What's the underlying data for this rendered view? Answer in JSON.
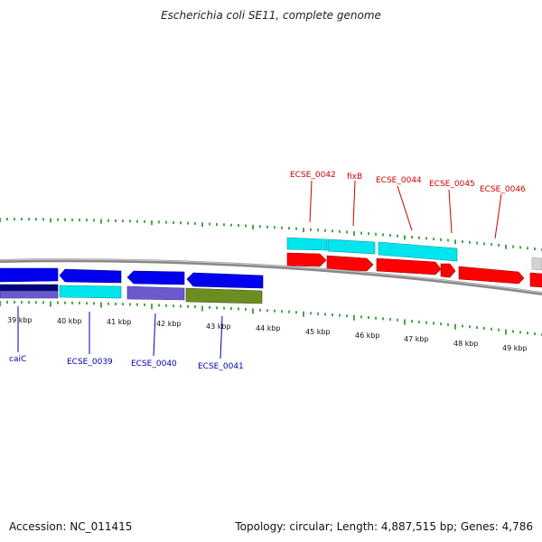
{
  "title": "Escherichia coli SE11, complete genome",
  "accession": "Accession: NC_011415",
  "summary": "Topology: circular; Length: 4,887,515 bp; Genes: 4,786",
  "colors": {
    "forward": "#ff0000",
    "reverse": "#0000ff",
    "cyan": "#00e5ee",
    "purple": "#6a5acd",
    "navy": "#000080",
    "olive": "#6b8e23",
    "gray": "#c0c0c0",
    "ticks": "#228b22",
    "backbone": "#808080"
  },
  "scale_labels": [
    "39 kbp",
    "40 kbp",
    "41 kbp",
    "42 kbp",
    "43 kbp",
    "44 kbp",
    "45 kbp",
    "46 kbp",
    "47 kbp",
    "48 kbp",
    "49 kbp"
  ],
  "forward_gene_labels": [
    "ECSE_0042",
    "fixB",
    "ECSE_0044",
    "ECSE_0045",
    "ECSE_0046"
  ],
  "reverse_gene_labels": [
    "caiC",
    "ECSE_0039",
    "ECSE_0040",
    "ECSE_0041"
  ]
}
